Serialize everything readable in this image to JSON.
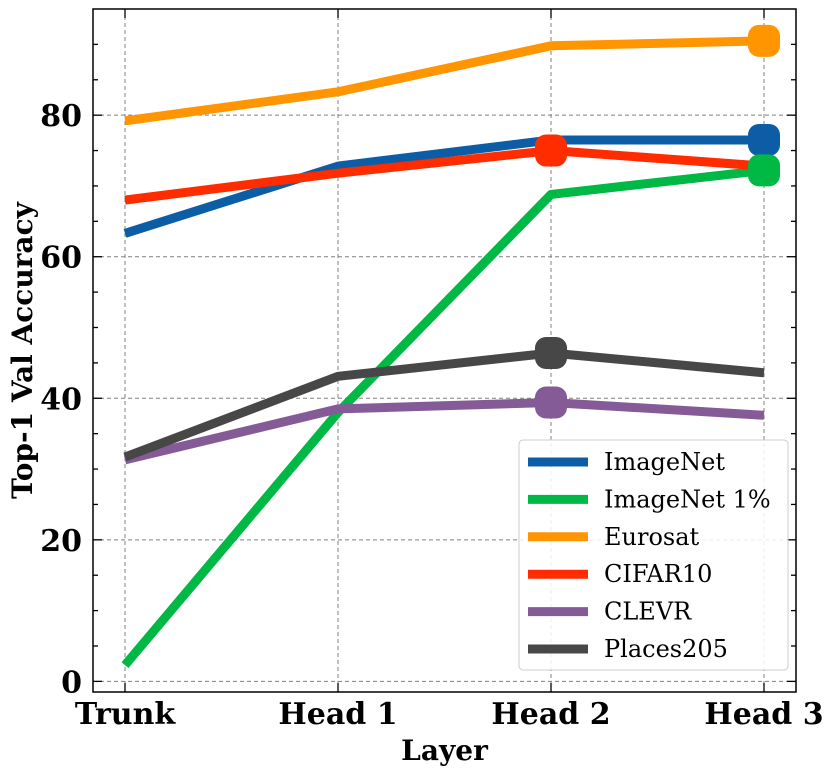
{
  "chart_data": {
    "type": "line",
    "xlabel": "Layer",
    "ylabel": "Top-1 Val Accuracy",
    "categories": [
      "Trunk",
      "Head 1",
      "Head 2",
      "Head 3"
    ],
    "ylim": [
      -1.5,
      95
    ],
    "yticks": [
      0,
      20,
      40,
      60,
      80
    ],
    "grid": true,
    "legend_position": "lower-right",
    "series": [
      {
        "name": "ImageNet",
        "color": "#0c5da5",
        "values": [
          63.3,
          72.8,
          76.5,
          76.5
        ],
        "marker_index": 3
      },
      {
        "name": "ImageNet 1%",
        "color": "#00b945",
        "values": [
          2.3,
          38.0,
          68.8,
          72.2
        ],
        "marker_index": 3
      },
      {
        "name": "Eurosat",
        "color": "#ff9500",
        "values": [
          79.2,
          83.3,
          89.8,
          90.5
        ],
        "marker_index": 3
      },
      {
        "name": "CIFAR10",
        "color": "#ff2c00",
        "values": [
          68.0,
          71.8,
          75.0,
          72.8
        ],
        "marker_index": 2
      },
      {
        "name": "CLEVR",
        "color": "#845b97",
        "values": [
          31.3,
          38.5,
          39.4,
          37.6
        ],
        "marker_index": 2
      },
      {
        "name": "Places205",
        "color": "#474747",
        "values": [
          31.7,
          43.1,
          46.4,
          43.6
        ],
        "marker_index": 2
      }
    ]
  }
}
